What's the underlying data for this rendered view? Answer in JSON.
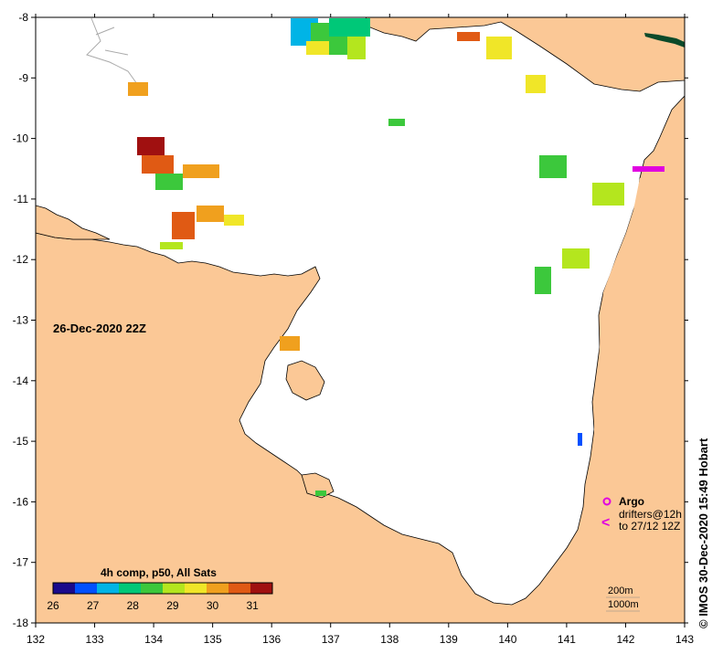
{
  "map": {
    "date_label": "26-Dec-2020 22Z",
    "credit": "© IMOS 30-Dec-2020 15:49 Hobart",
    "x_ticks": [
      "132",
      "133",
      "134",
      "135",
      "136",
      "137",
      "138",
      "139",
      "140",
      "141",
      "142",
      "143"
    ],
    "y_ticks": [
      "-8",
      "-9",
      "-10",
      "-11",
      "-12",
      "-13",
      "-14",
      "-15",
      "-16",
      "-17",
      "-18"
    ],
    "colorbar": {
      "title": "4h comp, p50, All Sats",
      "ticks": [
        "26",
        "27",
        "28",
        "29",
        "30",
        "31"
      ],
      "colors": [
        "#1a0a8c",
        "#0050ff",
        "#00b4e6",
        "#00c878",
        "#3cc83c",
        "#b4e61e",
        "#f0e628",
        "#f0a01e",
        "#e05a14",
        "#a01010"
      ]
    },
    "legend": {
      "argo_label": "Argo",
      "drifters_label": "drifters@12h",
      "drifters_sub": "to 27/12 12Z",
      "argo_color": "#e000e0"
    },
    "contours": {
      "depth_200": "200m",
      "depth_1000": "1000m"
    },
    "colors": {
      "land": "#fbc896",
      "sea": "#ffffff",
      "frame": "#000000"
    }
  }
}
